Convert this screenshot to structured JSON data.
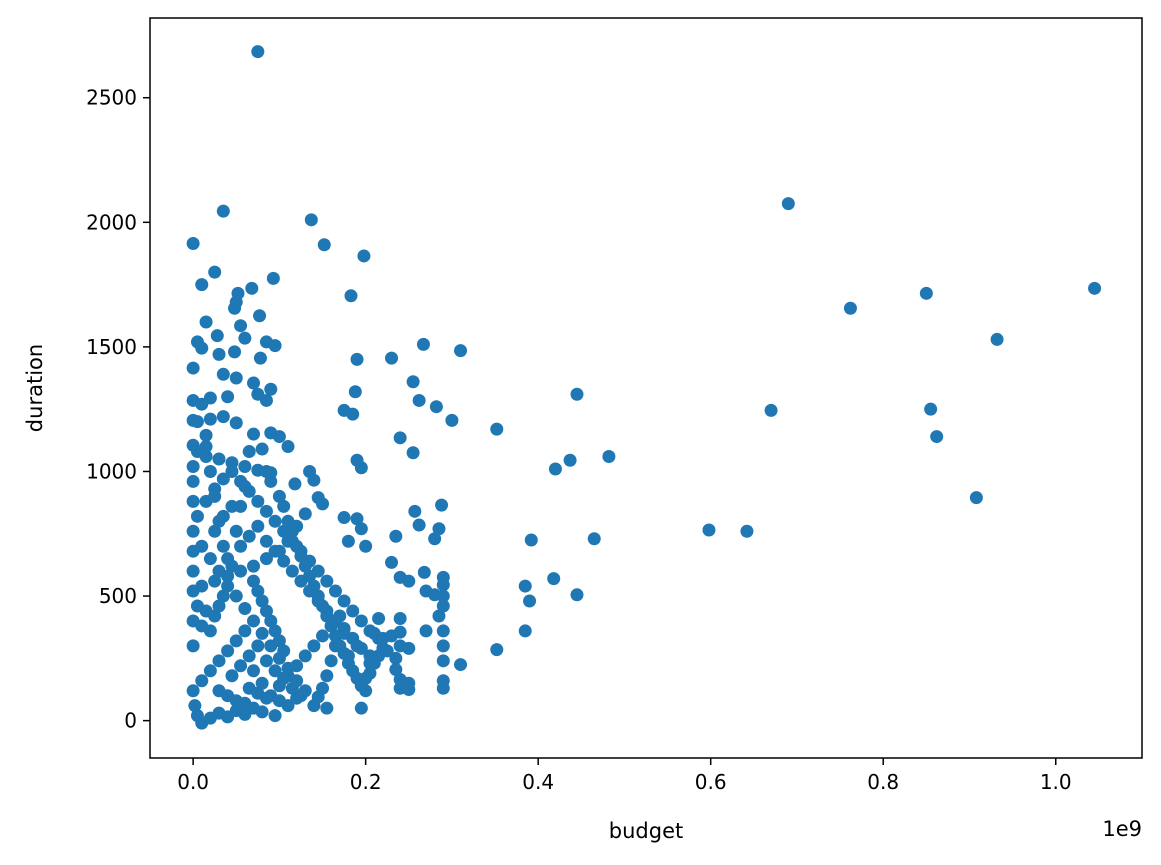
{
  "chart_data": {
    "type": "scatter",
    "title": "",
    "xlabel": "budget",
    "ylabel": "duration",
    "x_offset_label": "1e9",
    "xlim": [
      -0.05,
      1.1
    ],
    "ylim": [
      -150,
      2820
    ],
    "x_ticks": [
      {
        "value": 0.0,
        "label": "0.0"
      },
      {
        "value": 0.2,
        "label": "0.2"
      },
      {
        "value": 0.4,
        "label": "0.4"
      },
      {
        "value": 0.6,
        "label": "0.6"
      },
      {
        "value": 0.8,
        "label": "0.8"
      },
      {
        "value": 1.0,
        "label": "1.0"
      }
    ],
    "y_ticks": [
      {
        "value": 0,
        "label": "0"
      },
      {
        "value": 500,
        "label": "500"
      },
      {
        "value": 1000,
        "label": "1000"
      },
      {
        "value": 1500,
        "label": "1500"
      },
      {
        "value": 2000,
        "label": "2000"
      },
      {
        "value": 2500,
        "label": "2500"
      }
    ],
    "grid": false,
    "legend": "none",
    "marker_color": "#1f77b4",
    "points": [
      [
        0.075,
        2685
      ],
      [
        0.035,
        2045
      ],
      [
        0.137,
        2010
      ],
      [
        0.69,
        2075
      ],
      [
        0.152,
        1910
      ],
      [
        0.198,
        1865
      ],
      [
        0.0,
        1915
      ],
      [
        0.025,
        1800
      ],
      [
        0.01,
        1750
      ],
      [
        0.093,
        1775
      ],
      [
        0.052,
        1715
      ],
      [
        0.068,
        1735
      ],
      [
        0.183,
        1705
      ],
      [
        0.05,
        1680
      ],
      [
        0.048,
        1655
      ],
      [
        0.077,
        1625
      ],
      [
        0.015,
        1600
      ],
      [
        0.055,
        1585
      ],
      [
        0.762,
        1655
      ],
      [
        0.85,
        1715
      ],
      [
        1.045,
        1735
      ],
      [
        0.932,
        1530
      ],
      [
        0.005,
        1520
      ],
      [
        0.028,
        1545
      ],
      [
        0.06,
        1535
      ],
      [
        0.085,
        1520
      ],
      [
        0.095,
        1505
      ],
      [
        0.267,
        1510
      ],
      [
        0.31,
        1485
      ],
      [
        0.01,
        1495
      ],
      [
        0.03,
        1470
      ],
      [
        0.048,
        1480
      ],
      [
        0.19,
        1450
      ],
      [
        0.23,
        1455
      ],
      [
        0.078,
        1455
      ],
      [
        0.0,
        1415
      ],
      [
        0.035,
        1390
      ],
      [
        0.05,
        1375
      ],
      [
        0.07,
        1355
      ],
      [
        0.09,
        1330
      ],
      [
        0.188,
        1320
      ],
      [
        0.255,
        1360
      ],
      [
        0.445,
        1310
      ],
      [
        0.0,
        1285
      ],
      [
        0.02,
        1295
      ],
      [
        0.04,
        1300
      ],
      [
        0.075,
        1310
      ],
      [
        0.085,
        1285
      ],
      [
        0.262,
        1285
      ],
      [
        0.282,
        1260
      ],
      [
        0.175,
        1245
      ],
      [
        0.185,
        1230
      ],
      [
        0.3,
        1205
      ],
      [
        0.67,
        1245
      ],
      [
        0.855,
        1250
      ],
      [
        0.0,
        1205
      ],
      [
        0.02,
        1210
      ],
      [
        0.035,
        1220
      ],
      [
        0.05,
        1195
      ],
      [
        0.352,
        1170
      ],
      [
        0.24,
        1135
      ],
      [
        0.862,
        1140
      ],
      [
        0.015,
        1145
      ],
      [
        0.09,
        1155
      ],
      [
        0.1,
        1140
      ],
      [
        0.11,
        1100
      ],
      [
        0.255,
        1075
      ],
      [
        0.482,
        1060
      ],
      [
        0.437,
        1045
      ],
      [
        0.42,
        1010
      ],
      [
        0.0,
        1105
      ],
      [
        0.005,
        1080
      ],
      [
        0.015,
        1060
      ],
      [
        0.03,
        1050
      ],
      [
        0.045,
        1035
      ],
      [
        0.06,
        1020
      ],
      [
        0.075,
        1005
      ],
      [
        0.09,
        995
      ],
      [
        0.19,
        1045
      ],
      [
        0.195,
        1015
      ],
      [
        0.135,
        1000
      ],
      [
        0.14,
        965
      ],
      [
        0.118,
        950
      ],
      [
        0.908,
        895
      ],
      [
        0.598,
        765
      ],
      [
        0.642,
        760
      ],
      [
        0.465,
        730
      ],
      [
        0.392,
        725
      ],
      [
        0.288,
        865
      ],
      [
        0.257,
        840
      ],
      [
        0.262,
        785
      ],
      [
        0.285,
        770
      ],
      [
        0.28,
        730
      ],
      [
        0.235,
        740
      ],
      [
        0.19,
        810
      ],
      [
        0.195,
        770
      ],
      [
        0.2,
        700
      ],
      [
        0.18,
        720
      ],
      [
        0.175,
        815
      ],
      [
        0.145,
        895
      ],
      [
        0.15,
        870
      ],
      [
        0.13,
        830
      ],
      [
        0.12,
        780
      ],
      [
        0.11,
        720
      ],
      [
        0.1,
        680
      ],
      [
        0.085,
        650
      ],
      [
        0.07,
        620
      ],
      [
        0.055,
        600
      ],
      [
        0.04,
        580
      ],
      [
        0.025,
        560
      ],
      [
        0.01,
        540
      ],
      [
        0.0,
        520
      ],
      [
        0.23,
        635
      ],
      [
        0.24,
        575
      ],
      [
        0.25,
        560
      ],
      [
        0.268,
        595
      ],
      [
        0.27,
        520
      ],
      [
        0.28,
        505
      ],
      [
        0.29,
        575
      ],
      [
        0.29,
        545
      ],
      [
        0.29,
        500
      ],
      [
        0.29,
        460
      ],
      [
        0.385,
        540
      ],
      [
        0.418,
        570
      ],
      [
        0.445,
        505
      ],
      [
        0.39,
        480
      ],
      [
        0.385,
        360
      ],
      [
        0.352,
        285
      ],
      [
        0.31,
        225
      ],
      [
        0.29,
        160
      ],
      [
        0.29,
        130
      ],
      [
        0.29,
        240
      ],
      [
        0.29,
        300
      ],
      [
        0.29,
        360
      ],
      [
        0.285,
        420
      ],
      [
        0.27,
        360
      ],
      [
        0.25,
        290
      ],
      [
        0.24,
        410
      ],
      [
        0.24,
        355
      ],
      [
        0.24,
        300
      ],
      [
        0.235,
        250
      ],
      [
        0.235,
        205
      ],
      [
        0.24,
        165
      ],
      [
        0.24,
        130
      ],
      [
        0.25,
        150
      ],
      [
        0.25,
        125
      ],
      [
        0.23,
        340
      ],
      [
        0.22,
        290
      ],
      [
        0.215,
        260
      ],
      [
        0.21,
        230
      ],
      [
        0.205,
        190
      ],
      [
        0.2,
        170
      ],
      [
        0.195,
        140
      ],
      [
        0.19,
        300
      ],
      [
        0.18,
        260
      ],
      [
        0.175,
        350
      ],
      [
        0.165,
        300
      ],
      [
        0.16,
        240
      ],
      [
        0.155,
        180
      ],
      [
        0.15,
        130
      ],
      [
        0.145,
        95
      ],
      [
        0.14,
        60
      ],
      [
        0.155,
        50
      ],
      [
        0.195,
        50
      ],
      [
        0.13,
        120
      ],
      [
        0.12,
        160
      ],
      [
        0.11,
        210
      ],
      [
        0.1,
        250
      ],
      [
        0.09,
        300
      ],
      [
        0.08,
        350
      ],
      [
        0.07,
        400
      ],
      [
        0.06,
        450
      ],
      [
        0.05,
        500
      ],
      [
        0.04,
        540
      ],
      [
        0.03,
        600
      ],
      [
        0.02,
        650
      ],
      [
        0.01,
        700
      ],
      [
        0.0,
        760
      ],
      [
        0.005,
        820
      ],
      [
        0.015,
        880
      ],
      [
        0.025,
        930
      ],
      [
        0.035,
        970
      ],
      [
        0.045,
        1000
      ],
      [
        0.055,
        960
      ],
      [
        0.065,
        920
      ],
      [
        0.075,
        880
      ],
      [
        0.085,
        840
      ],
      [
        0.095,
        800
      ],
      [
        0.105,
        760
      ],
      [
        0.115,
        720
      ],
      [
        0.125,
        680
      ],
      [
        0.135,
        640
      ],
      [
        0.145,
        600
      ],
      [
        0.155,
        560
      ],
      [
        0.165,
        520
      ],
      [
        0.175,
        480
      ],
      [
        0.185,
        440
      ],
      [
        0.195,
        400
      ],
      [
        0.205,
        360
      ],
      [
        0.215,
        330
      ],
      [
        0.002,
        60
      ],
      [
        0.005,
        20
      ],
      [
        0.01,
        -10
      ],
      [
        0.02,
        10
      ],
      [
        0.03,
        30
      ],
      [
        0.04,
        15
      ],
      [
        0.05,
        40
      ],
      [
        0.06,
        25
      ],
      [
        0.07,
        50
      ],
      [
        0.08,
        35
      ],
      [
        0.095,
        20
      ],
      [
        0.0,
        120
      ],
      [
        0.01,
        160
      ],
      [
        0.02,
        200
      ],
      [
        0.03,
        240
      ],
      [
        0.04,
        280
      ],
      [
        0.05,
        320
      ],
      [
        0.06,
        360
      ],
      [
        0.07,
        200
      ],
      [
        0.08,
        150
      ],
      [
        0.09,
        100
      ],
      [
        0.1,
        80
      ],
      [
        0.11,
        60
      ],
      [
        0.12,
        90
      ],
      [
        0.0,
        300
      ],
      [
        0.0,
        400
      ],
      [
        0.0,
        600
      ],
      [
        0.0,
        680
      ],
      [
        0.0,
        880
      ],
      [
        0.0,
        960
      ],
      [
        0.0,
        1020
      ],
      [
        0.005,
        1200
      ],
      [
        0.01,
        1270
      ],
      [
        0.015,
        1100
      ],
      [
        0.02,
        1000
      ],
      [
        0.025,
        900
      ],
      [
        0.03,
        800
      ],
      [
        0.035,
        700
      ],
      [
        0.04,
        650
      ],
      [
        0.045,
        620
      ],
      [
        0.05,
        760
      ],
      [
        0.055,
        860
      ],
      [
        0.06,
        940
      ],
      [
        0.065,
        1080
      ],
      [
        0.07,
        1150
      ],
      [
        0.08,
        1090
      ],
      [
        0.085,
        1000
      ],
      [
        0.09,
        960
      ],
      [
        0.1,
        900
      ],
      [
        0.105,
        860
      ],
      [
        0.11,
        800
      ],
      [
        0.115,
        760
      ],
      [
        0.12,
        700
      ],
      [
        0.125,
        660
      ],
      [
        0.13,
        620
      ],
      [
        0.135,
        580
      ],
      [
        0.14,
        540
      ],
      [
        0.145,
        500
      ],
      [
        0.15,
        460
      ],
      [
        0.155,
        420
      ],
      [
        0.16,
        380
      ],
      [
        0.165,
        340
      ],
      [
        0.17,
        300
      ],
      [
        0.175,
        270
      ],
      [
        0.18,
        230
      ],
      [
        0.185,
        200
      ],
      [
        0.19,
        170
      ],
      [
        0.195,
        140
      ],
      [
        0.2,
        120
      ],
      [
        0.205,
        230
      ],
      [
        0.21,
        350
      ],
      [
        0.215,
        410
      ],
      [
        0.22,
        330
      ],
      [
        0.225,
        280
      ],
      [
        0.1,
        140
      ],
      [
        0.11,
        180
      ],
      [
        0.12,
        220
      ],
      [
        0.13,
        260
      ],
      [
        0.14,
        300
      ],
      [
        0.15,
        340
      ],
      [
        0.16,
        380
      ],
      [
        0.17,
        420
      ],
      [
        0.07,
        560
      ],
      [
        0.075,
        520
      ],
      [
        0.08,
        480
      ],
      [
        0.085,
        440
      ],
      [
        0.09,
        400
      ],
      [
        0.095,
        360
      ],
      [
        0.1,
        320
      ],
      [
        0.105,
        280
      ],
      [
        0.02,
        360
      ],
      [
        0.025,
        420
      ],
      [
        0.03,
        460
      ],
      [
        0.035,
        500
      ],
      [
        0.015,
        440
      ],
      [
        0.01,
        380
      ],
      [
        0.005,
        460
      ],
      [
        0.03,
        120
      ],
      [
        0.04,
        100
      ],
      [
        0.05,
        80
      ],
      [
        0.06,
        70
      ],
      [
        0.065,
        130
      ],
      [
        0.075,
        110
      ],
      [
        0.085,
        90
      ],
      [
        0.045,
        180
      ],
      [
        0.055,
        220
      ],
      [
        0.065,
        260
      ],
      [
        0.075,
        300
      ],
      [
        0.085,
        240
      ],
      [
        0.095,
        200
      ],
      [
        0.105,
        170
      ],
      [
        0.115,
        130
      ],
      [
        0.125,
        100
      ],
      [
        0.025,
        760
      ],
      [
        0.035,
        820
      ],
      [
        0.045,
        860
      ],
      [
        0.055,
        700
      ],
      [
        0.065,
        740
      ],
      [
        0.075,
        780
      ],
      [
        0.085,
        720
      ],
      [
        0.095,
        680
      ],
      [
        0.105,
        640
      ],
      [
        0.115,
        600
      ],
      [
        0.125,
        560
      ],
      [
        0.135,
        520
      ],
      [
        0.145,
        480
      ],
      [
        0.155,
        440
      ],
      [
        0.165,
        400
      ],
      [
        0.175,
        370
      ],
      [
        0.185,
        330
      ],
      [
        0.195,
        290
      ],
      [
        0.205,
        260
      ]
    ]
  }
}
